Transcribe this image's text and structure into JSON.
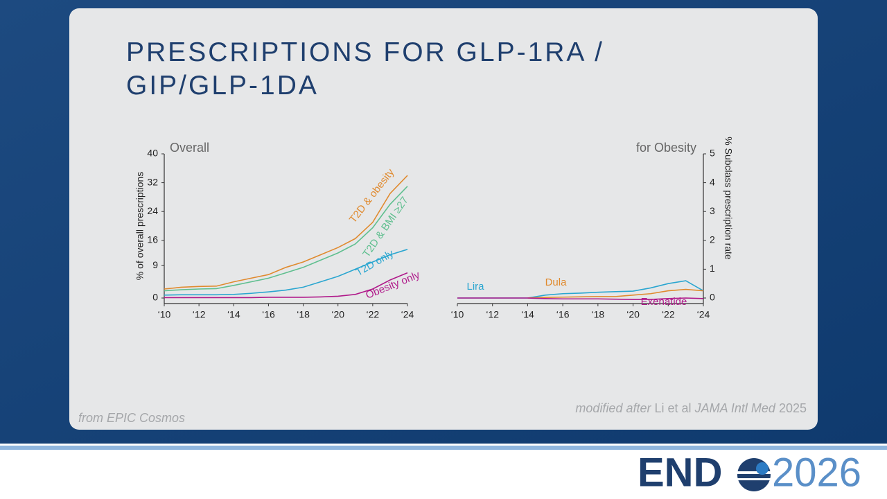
{
  "title_lines": [
    "PRESCRIPTIONS FOR GLP-1RA /",
    "GIP/GLP-1DA"
  ],
  "source": "from EPIC Cosmos",
  "citation": [
    "modified after",
    "Li et al",
    "JAMA Intl Med",
    "2025"
  ],
  "logo": {
    "left": "END",
    "right": "2026"
  },
  "chart_data": [
    {
      "type": "line",
      "title": "Overall",
      "ylabel": "% of overall prescriptions",
      "x": [
        2010,
        2011,
        2012,
        2013,
        2014,
        2015,
        2016,
        2017,
        2018,
        2019,
        2020,
        2021,
        2022,
        2023,
        2024
      ],
      "xlim": [
        2010,
        2024
      ],
      "xticks": [
        {
          "value": 2010,
          "label": "‘10"
        },
        {
          "value": 2012,
          "label": "‘12"
        },
        {
          "value": 2014,
          "label": "‘14"
        },
        {
          "value": 2016,
          "label": "‘16"
        },
        {
          "value": 2018,
          "label": "‘18"
        },
        {
          "value": 2020,
          "label": "‘20"
        },
        {
          "value": 2022,
          "label": "‘22"
        },
        {
          "value": 2024,
          "label": "‘24"
        }
      ],
      "ylim": [
        0,
        40
      ],
      "yticks": [
        0,
        9,
        16,
        24,
        32,
        40
      ],
      "series": [
        {
          "name": "T2D & obesity",
          "color": "#e08a2e",
          "values": [
            2.5,
            3,
            3.2,
            3.3,
            4.5,
            5.5,
            6.5,
            8.5,
            10,
            12,
            14,
            16.5,
            21,
            29,
            34
          ]
        },
        {
          "name": "T2D & BMI ≥27",
          "color": "#5fbf8f",
          "values": [
            2,
            2.3,
            2.5,
            2.6,
            3.5,
            4.5,
            5.5,
            7,
            8.5,
            10.5,
            12.5,
            15,
            19.5,
            26,
            31
          ]
        },
        {
          "name": "T2D only",
          "color": "#2aa6d0",
          "values": [
            0.8,
            0.9,
            0.9,
            0.9,
            1,
            1.3,
            1.7,
            2.2,
            3,
            4.5,
            6,
            8,
            10,
            12,
            13.5
          ]
        },
        {
          "name": "Obesity only",
          "color": "#b0198a",
          "values": [
            0.1,
            0.1,
            0.1,
            0.1,
            0.1,
            0.1,
            0.2,
            0.2,
            0.2,
            0.3,
            0.5,
            1,
            2.5,
            5,
            7
          ]
        }
      ]
    },
    {
      "type": "line",
      "title": "for Obesity",
      "y2label": "% Subclass prescription rate",
      "x": [
        2010,
        2011,
        2012,
        2013,
        2014,
        2015,
        2016,
        2017,
        2018,
        2019,
        2020,
        2021,
        2022,
        2023,
        2024
      ],
      "xlim": [
        2010,
        2024
      ],
      "xticks": [
        {
          "value": 2010,
          "label": "‘10"
        },
        {
          "value": 2012,
          "label": "‘12"
        },
        {
          "value": 2014,
          "label": "‘14"
        },
        {
          "value": 2016,
          "label": "‘16"
        },
        {
          "value": 2018,
          "label": "‘18"
        },
        {
          "value": 2020,
          "label": "‘20"
        },
        {
          "value": 2022,
          "label": "‘22"
        },
        {
          "value": 2024,
          "label": "‘24"
        }
      ],
      "y2lim": [
        0,
        5
      ],
      "y2ticks": [
        0,
        1,
        2,
        3,
        4,
        5
      ],
      "series": [
        {
          "name": "Lira",
          "color": "#2aa6d0",
          "axis": "y2",
          "values": [
            0,
            0,
            0,
            0,
            0,
            0.1,
            0.15,
            0.17,
            0.2,
            0.22,
            0.24,
            0.35,
            0.5,
            0.6,
            0.25
          ]
        },
        {
          "name": "Dula",
          "color": "#e08a2e",
          "axis": "y2",
          "values": [
            null,
            null,
            null,
            null,
            0,
            0.02,
            0.03,
            0.04,
            0.05,
            0.05,
            0.1,
            0.15,
            0.25,
            0.3,
            0.25
          ]
        },
        {
          "name": "Exenatide",
          "color": "#b0198a",
          "axis": "y2",
          "values": [
            0,
            0,
            0,
            0,
            0,
            -0.02,
            -0.03,
            -0.03,
            -0.03,
            -0.04,
            -0.05,
            -0.05,
            -0.02,
            0,
            -0.02
          ]
        }
      ]
    }
  ]
}
